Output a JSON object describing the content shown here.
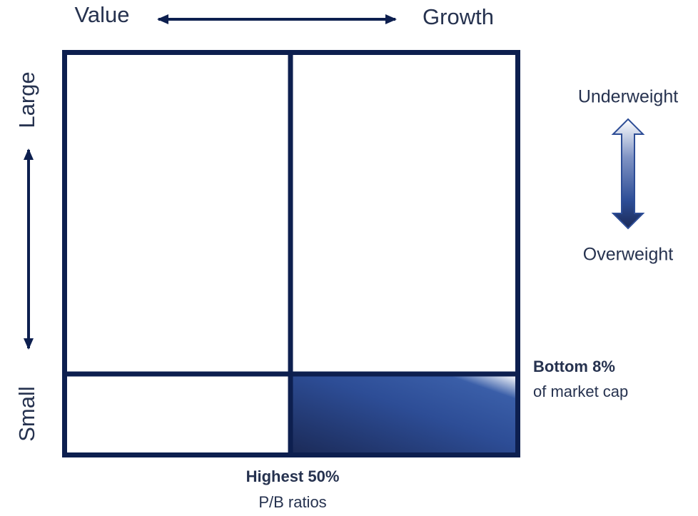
{
  "axes": {
    "x": {
      "left": "Value",
      "right": "Growth"
    },
    "y": {
      "top": "Large",
      "bottom": "Small"
    }
  },
  "weight_scale": {
    "top": "Underweight",
    "bottom": "Overweight"
  },
  "annotations": {
    "right": {
      "bold": "Bottom 8%",
      "text": "of market cap"
    },
    "bottom": {
      "bold": "Highest 50%",
      "text": "P/B ratios"
    }
  }
}
